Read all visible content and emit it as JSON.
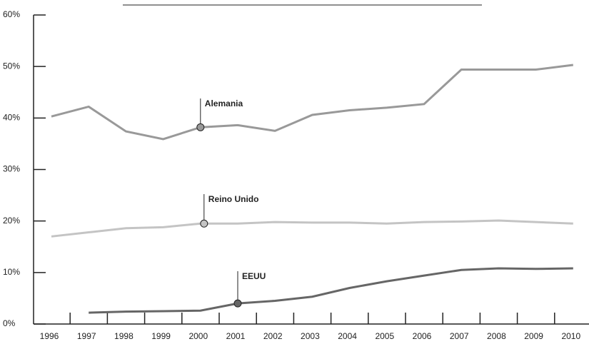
{
  "chart_data": {
    "type": "line",
    "categories": [
      "1996",
      "1997",
      "1998",
      "1999",
      "2000",
      "2001",
      "2002",
      "2003",
      "2004",
      "2005",
      "2006",
      "2007",
      "2008",
      "2009",
      "2010"
    ],
    "series": [
      {
        "name": "Alemania",
        "color": "#999999",
        "values": [
          40.3,
          42.2,
          37.4,
          35.9,
          38.2,
          38.6,
          37.5,
          40.6,
          41.5,
          42.0,
          42.7,
          49.4,
          49.4,
          49.4,
          50.3
        ]
      },
      {
        "name": "Reino Unido",
        "color": "#c4c4c4",
        "values": [
          17.0,
          17.8,
          18.6,
          18.8,
          19.5,
          19.5,
          19.8,
          19.7,
          19.7,
          19.5,
          19.8,
          19.9,
          20.1,
          19.8,
          19.5
        ]
      },
      {
        "name": "EEUU",
        "color": "#666666",
        "values": [
          null,
          2.2,
          2.4,
          2.5,
          2.6,
          4.0,
          4.5,
          5.3,
          7.0,
          8.3,
          9.4,
          10.5,
          10.8,
          10.7,
          10.8
        ]
      }
    ],
    "ylim": [
      0,
      60
    ],
    "yticks": [
      {
        "value": 0,
        "label": "0%"
      },
      {
        "value": 10,
        "label": "10%"
      },
      {
        "value": 20,
        "label": "20%"
      },
      {
        "value": 30,
        "label": "30%"
      },
      {
        "value": 40,
        "label": "40%"
      },
      {
        "value": 50,
        "label": "50%"
      },
      {
        "value": 60,
        "label": "60%"
      }
    ]
  }
}
